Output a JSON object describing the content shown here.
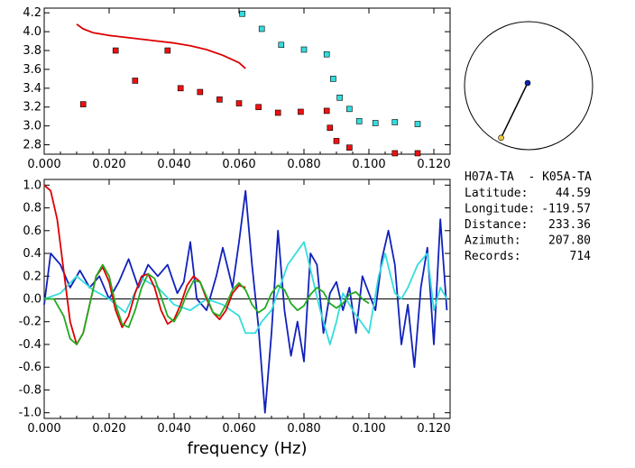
{
  "chart_data": [
    {
      "type": "scatter",
      "panel": "top",
      "xlim": [
        0.0,
        0.125
      ],
      "ylim": [
        2.7,
        4.25
      ],
      "x_ticks": [
        "0.000",
        "0.020",
        "0.040",
        "0.060",
        "0.080",
        "0.100",
        "0.120"
      ],
      "y_ticks": [
        "2.8",
        "3.0",
        "3.2",
        "3.4",
        "3.6",
        "3.8",
        "4.0",
        "4.2"
      ],
      "colors": {
        "red_points": "#ee1111",
        "cyan_points": "#33dddd",
        "curve": "#dd0000"
      },
      "series": [
        {
          "marker": "square",
          "color": "red_points",
          "x": [
            0.012,
            0.022,
            0.028,
            0.038,
            0.042,
            0.048,
            0.054,
            0.06,
            0.066,
            0.072,
            0.079,
            0.087,
            0.088,
            0.09,
            0.094,
            0.108,
            0.115
          ],
          "y": [
            3.23,
            3.8,
            3.48,
            3.8,
            3.4,
            3.36,
            3.28,
            3.24,
            3.2,
            3.14,
            3.15,
            3.16,
            2.98,
            2.84,
            2.77,
            2.71,
            2.71
          ]
        },
        {
          "marker": "square",
          "color": "cyan_points",
          "x": [
            0.061,
            0.067,
            0.073,
            0.08,
            0.087,
            0.089,
            0.091,
            0.094,
            0.097,
            0.102,
            0.108,
            0.115
          ],
          "y": [
            4.19,
            4.03,
            3.86,
            3.81,
            3.76,
            3.5,
            3.3,
            3.18,
            3.05,
            3.03,
            3.04,
            3.02
          ]
        },
        {
          "marker": "line",
          "color": "curve",
          "x": [
            0.01,
            0.012,
            0.015,
            0.02,
            0.025,
            0.03,
            0.035,
            0.04,
            0.045,
            0.05,
            0.055,
            0.06,
            0.062
          ],
          "y": [
            4.08,
            4.03,
            3.99,
            3.96,
            3.94,
            3.92,
            3.9,
            3.88,
            3.85,
            3.81,
            3.75,
            3.67,
            3.61
          ]
        }
      ]
    },
    {
      "type": "line",
      "panel": "bottom",
      "xlabel": "frequency (Hz)",
      "xlim": [
        0.0,
        0.125
      ],
      "ylim": [
        -1.05,
        1.05
      ],
      "x_ticks": [
        "0.000",
        "0.020",
        "0.040",
        "0.060",
        "0.080",
        "0.100",
        "0.120"
      ],
      "y_ticks": [
        "1.0",
        "0.8",
        "0.6",
        "0.4",
        "0.2",
        "0.0",
        "-0.2",
        "-0.4",
        "-0.6",
        "-0.8",
        "-1.0"
      ],
      "colors": {
        "blue": "#1122bb",
        "cyan": "#33dddd",
        "red": "#dd0000",
        "green": "#22aa22"
      },
      "series": [
        {
          "color": "blue",
          "x": [
            0.0,
            0.002,
            0.005,
            0.008,
            0.011,
            0.014,
            0.017,
            0.02,
            0.023,
            0.026,
            0.029,
            0.032,
            0.035,
            0.038,
            0.041,
            0.043,
            0.045,
            0.047,
            0.05,
            0.053,
            0.055,
            0.058,
            0.06,
            0.062,
            0.064,
            0.066,
            0.068,
            0.07,
            0.072,
            0.074,
            0.076,
            0.078,
            0.08,
            0.082,
            0.084,
            0.086,
            0.088,
            0.09,
            0.092,
            0.094,
            0.096,
            0.098,
            0.1,
            0.102,
            0.104,
            0.106,
            0.108,
            0.11,
            0.112,
            0.114,
            0.116,
            0.118,
            0.12,
            0.122,
            0.124
          ],
          "y": [
            -0.05,
            0.4,
            0.3,
            0.1,
            0.25,
            0.1,
            0.2,
            0.0,
            0.15,
            0.35,
            0.1,
            0.3,
            0.2,
            0.3,
            0.05,
            0.15,
            0.5,
            0.0,
            -0.1,
            0.2,
            0.45,
            0.1,
            0.5,
            0.95,
            0.3,
            -0.25,
            -1.0,
            -0.3,
            0.6,
            -0.1,
            -0.5,
            -0.2,
            -0.55,
            0.4,
            0.3,
            -0.3,
            0.05,
            0.15,
            -0.1,
            0.1,
            -0.3,
            0.2,
            0.05,
            -0.1,
            0.35,
            0.6,
            0.3,
            -0.4,
            -0.05,
            -0.6,
            0.1,
            0.45,
            -0.4,
            0.7,
            -0.1
          ]
        },
        {
          "color": "cyan",
          "x": [
            0.0,
            0.005,
            0.01,
            0.015,
            0.02,
            0.025,
            0.03,
            0.035,
            0.04,
            0.045,
            0.05,
            0.055,
            0.06,
            0.062,
            0.065,
            0.067,
            0.07,
            0.075,
            0.08,
            0.085,
            0.088,
            0.09,
            0.092,
            0.095,
            0.1,
            0.103,
            0.105,
            0.108,
            0.11,
            0.112,
            0.115,
            0.118,
            0.12,
            0.122,
            0.124
          ],
          "y": [
            0.0,
            0.05,
            0.2,
            0.08,
            0.0,
            -0.12,
            0.18,
            0.1,
            -0.05,
            -0.1,
            0.0,
            -0.05,
            -0.15,
            -0.3,
            -0.3,
            -0.2,
            -0.1,
            0.3,
            0.5,
            -0.1,
            -0.4,
            -0.2,
            0.05,
            -0.1,
            -0.3,
            0.2,
            0.4,
            0.05,
            0.0,
            0.1,
            0.3,
            0.4,
            -0.1,
            0.1,
            0.0
          ]
        },
        {
          "color": "red",
          "x": [
            0.0,
            0.002,
            0.004,
            0.006,
            0.008,
            0.01,
            0.012,
            0.014,
            0.016,
            0.018,
            0.02,
            0.022,
            0.024,
            0.026,
            0.028,
            0.03,
            0.032,
            0.034,
            0.036,
            0.038,
            0.04,
            0.042,
            0.044,
            0.046,
            0.048,
            0.05,
            0.052,
            0.054,
            0.056,
            0.058,
            0.06,
            0.062
          ],
          "y": [
            1.0,
            0.95,
            0.7,
            0.25,
            -0.2,
            -0.4,
            -0.3,
            -0.05,
            0.2,
            0.28,
            0.15,
            -0.1,
            -0.25,
            -0.15,
            0.05,
            0.2,
            0.22,
            0.1,
            -0.1,
            -0.22,
            -0.18,
            -0.05,
            0.12,
            0.2,
            0.15,
            0.0,
            -0.12,
            -0.18,
            -0.1,
            0.05,
            0.12,
            0.1
          ]
        },
        {
          "color": "green",
          "x": [
            0.0,
            0.003,
            0.006,
            0.008,
            0.01,
            0.012,
            0.014,
            0.016,
            0.018,
            0.02,
            0.022,
            0.024,
            0.026,
            0.028,
            0.03,
            0.032,
            0.034,
            0.036,
            0.038,
            0.04,
            0.042,
            0.044,
            0.046,
            0.048,
            0.05,
            0.052,
            0.054,
            0.056,
            0.058,
            0.06,
            0.062,
            0.064,
            0.066,
            0.068,
            0.07,
            0.072,
            0.074,
            0.076,
            0.078,
            0.08,
            0.082,
            0.084,
            0.086,
            0.088,
            0.09,
            0.092,
            0.094,
            0.096,
            0.098,
            0.1
          ],
          "y": [
            0.0,
            0.0,
            -0.15,
            -0.35,
            -0.4,
            -0.3,
            -0.05,
            0.2,
            0.3,
            0.2,
            -0.05,
            -0.22,
            -0.25,
            -0.1,
            0.1,
            0.22,
            0.18,
            0.02,
            -0.15,
            -0.2,
            -0.1,
            0.05,
            0.16,
            0.15,
            0.02,
            -0.12,
            -0.15,
            -0.05,
            0.08,
            0.14,
            0.08,
            -0.05,
            -0.12,
            -0.08,
            0.05,
            0.12,
            0.08,
            -0.04,
            -0.1,
            -0.06,
            0.04,
            0.1,
            0.06,
            -0.04,
            -0.08,
            -0.04,
            0.04,
            0.06,
            0.0,
            -0.04
          ]
        }
      ]
    }
  ],
  "map": {
    "circle_color": "#000000",
    "station_a_color": "#1122aa",
    "station_b_color": "#eecc44",
    "azimuth_deg": 207.8
  },
  "info": {
    "pair": "H07A-TA  - K05A-TA",
    "lines": [
      {
        "label": "Latitude:",
        "value": "44.59"
      },
      {
        "label": "Longitude:",
        "value": "-119.57"
      },
      {
        "label": "Distance:",
        "value": "233.36"
      },
      {
        "label": "Azimuth:",
        "value": "207.80"
      },
      {
        "label": "Records:",
        "value": "714"
      }
    ]
  }
}
